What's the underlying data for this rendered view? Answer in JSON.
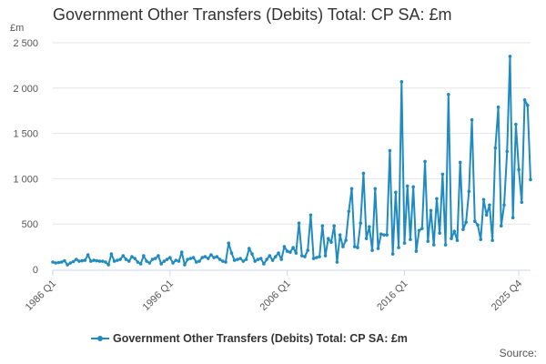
{
  "chart_data": {
    "type": "line",
    "title": "Government Other Transfers (Debits) Total: CP SA: £m",
    "unit_label": "£m",
    "ylim": [
      0,
      2500
    ],
    "yticks": [
      {
        "value": 0,
        "label": "0"
      },
      {
        "value": 500,
        "label": "500"
      },
      {
        "value": 1000,
        "label": "1 000"
      },
      {
        "value": 1500,
        "label": "1 500"
      },
      {
        "value": 2000,
        "label": "2 000"
      },
      {
        "value": 2500,
        "label": "2 500"
      }
    ],
    "xticks": [
      {
        "index": 0,
        "label": "1986 Q1"
      },
      {
        "index": 40,
        "label": "1996 Q1"
      },
      {
        "index": 80,
        "label": "2006 Q1"
      },
      {
        "index": 120,
        "label": "2016 Q1"
      },
      {
        "index": 159,
        "label": "2025 Q4"
      }
    ],
    "x_start": "1986 Q1",
    "x_end": "2025 Q4",
    "grid": true,
    "legend_position": "bottom",
    "color": "#1f8bc0",
    "series": [
      {
        "name": "Government Other Transfers (Debits) Total: CP SA: £m",
        "values": [
          80,
          70,
          75,
          80,
          95,
          50,
          70,
          85,
          110,
          90,
          95,
          100,
          160,
          90,
          100,
          95,
          90,
          90,
          80,
          50,
          170,
          90,
          100,
          110,
          150,
          110,
          90,
          140,
          120,
          80,
          60,
          150,
          90,
          70,
          110,
          120,
          150,
          60,
          90,
          110,
          130,
          70,
          100,
          90,
          190,
          50,
          110,
          120,
          130,
          80,
          90,
          130,
          140,
          120,
          160,
          130,
          140,
          110,
          90,
          80,
          290,
          180,
          100,
          110,
          120,
          90,
          110,
          230,
          170,
          90,
          110,
          120,
          60,
          110,
          150,
          100,
          140,
          180,
          110,
          250,
          200,
          190,
          240,
          180,
          510,
          150,
          140,
          210,
          600,
          120,
          130,
          140,
          480,
          150,
          340,
          300,
          480,
          80,
          380,
          250,
          320,
          640,
          890,
          250,
          240,
          510,
          1060,
          340,
          470,
          210,
          890,
          230,
          390,
          380,
          380,
          1310,
          170,
          850,
          240,
          2070,
          290,
          920,
          330,
          910,
          200,
          430,
          450,
          1190,
          310,
          650,
          270,
          780,
          400,
          1050,
          270,
          1930,
          340,
          420,
          320,
          1180,
          440,
          520,
          860,
          1650,
          530,
          490,
          330,
          770,
          600,
          710,
          320,
          1340,
          1790,
          480,
          710,
          1300,
          2350,
          570,
          1600,
          1100,
          740,
          1870,
          1810,
          990
        ]
      }
    ],
    "source_label": "Source:"
  }
}
